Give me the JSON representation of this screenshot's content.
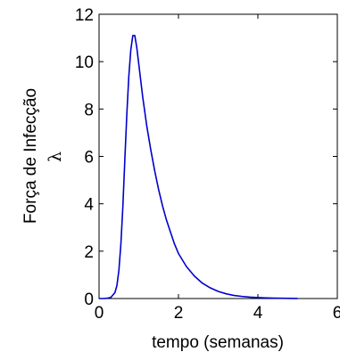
{
  "chart_data": {
    "type": "line",
    "title": "",
    "xlabel": "tempo (semanas)",
    "ylabel_line1": "Força de Infecção",
    "ylabel_line2": "λ",
    "xlim": [
      0,
      6
    ],
    "ylim": [
      0,
      12
    ],
    "xticks": [
      0,
      2,
      4,
      6
    ],
    "yticks": [
      0,
      2,
      4,
      6,
      8,
      10,
      12
    ],
    "grid": false,
    "series": [
      {
        "color": "#0000cc",
        "x": [
          0,
          0.1,
          0.2,
          0.3,
          0.4,
          0.45,
          0.5,
          0.55,
          0.6,
          0.65,
          0.7,
          0.75,
          0.8,
          0.85,
          0.9,
          0.95,
          1.0,
          1.05,
          1.1,
          1.15,
          1.2,
          1.3,
          1.4,
          1.5,
          1.6,
          1.7,
          1.8,
          1.9,
          2.0,
          2.2,
          2.4,
          2.6,
          2.8,
          3.0,
          3.2,
          3.4,
          3.6,
          3.8,
          4.0,
          4.2,
          4.4,
          4.6,
          4.8,
          5.0
        ],
        "y": [
          0,
          0.0,
          0.01,
          0.05,
          0.25,
          0.55,
          1.2,
          2.3,
          3.9,
          5.9,
          7.8,
          9.4,
          10.5,
          11.1,
          11.1,
          10.6,
          9.9,
          9.2,
          8.5,
          7.9,
          7.3,
          6.3,
          5.4,
          4.6,
          3.9,
          3.3,
          2.8,
          2.3,
          1.9,
          1.35,
          0.95,
          0.65,
          0.45,
          0.3,
          0.2,
          0.13,
          0.09,
          0.06,
          0.04,
          0.025,
          0.015,
          0.01,
          0.006,
          0.004
        ]
      }
    ]
  }
}
